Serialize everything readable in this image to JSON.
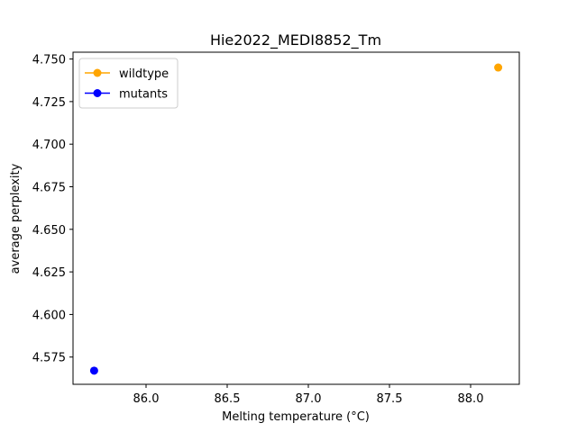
{
  "chart_data": {
    "type": "scatter",
    "title": "Hie2022_MEDI8852_Tm",
    "xlabel": "Melting temperature (°C)",
    "ylabel": "average perplexity",
    "xlim": [
      85.55,
      88.3
    ],
    "ylim": [
      4.559,
      4.754
    ],
    "xticks": [
      86.0,
      86.5,
      87.0,
      87.5,
      88.0
    ],
    "xtick_labels": [
      "86.0",
      "86.5",
      "87.0",
      "87.5",
      "88.0"
    ],
    "yticks": [
      4.575,
      4.6,
      4.625,
      4.65,
      4.675,
      4.7,
      4.725,
      4.75
    ],
    "ytick_labels": [
      "4.575",
      "4.600",
      "4.625",
      "4.650",
      "4.675",
      "4.700",
      "4.725",
      "4.750"
    ],
    "grid": false,
    "legend_position": "upper-left",
    "series": [
      {
        "name": "wildtype",
        "color": "#ffa500",
        "points": [
          {
            "x": 88.17,
            "y": 4.745
          }
        ]
      },
      {
        "name": "mutants",
        "color": "#0000ff",
        "points": [
          {
            "x": 85.68,
            "y": 4.567
          }
        ]
      }
    ]
  }
}
